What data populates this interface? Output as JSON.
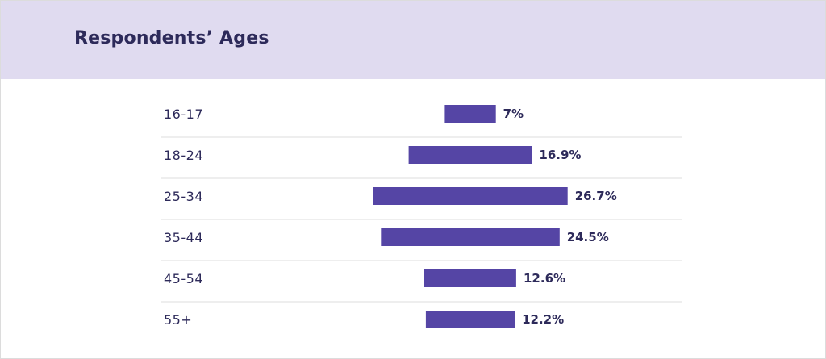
{
  "title": "Respondents’ Ages",
  "colors": {
    "header_background": "#e0dbf0",
    "bar": "#5545a5",
    "text": "#2d2a5a",
    "divider": "#dcdcdc"
  },
  "chart_data": {
    "type": "bar",
    "orientation": "horizontal",
    "title": "Respondents’ Ages",
    "categories": [
      "16-17",
      "18-24",
      "25-34",
      "35-44",
      "45-54",
      "55+"
    ],
    "values": [
      7,
      16.9,
      26.7,
      24.5,
      12.6,
      12.2
    ],
    "value_labels": [
      "7%",
      "16.9%",
      "26.7%",
      "24.5%",
      "12.6%",
      "12.2%"
    ],
    "unit": "%",
    "grid": false,
    "legend": "none"
  }
}
